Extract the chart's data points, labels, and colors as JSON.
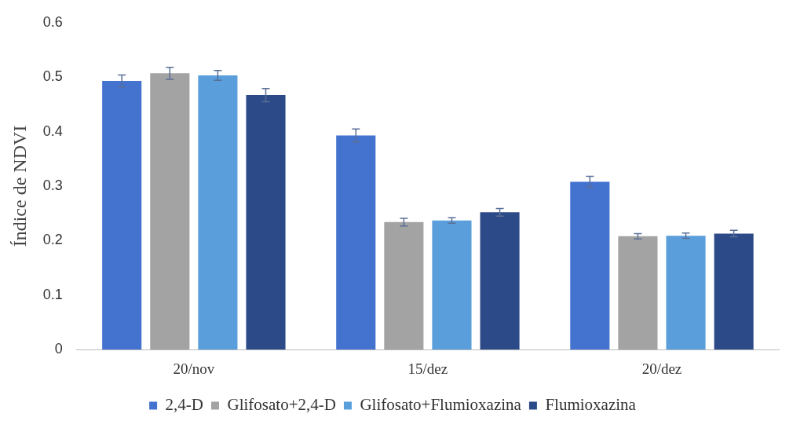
{
  "chart_data": {
    "type": "bar",
    "ylabel": "Índice de NDVI",
    "categories": [
      "20/nov",
      "15/dez",
      "20/dez"
    ],
    "series": [
      {
        "name": "2,4-D",
        "color": "#4372cf",
        "values": [
          0.493,
          0.393,
          0.308
        ],
        "errors": [
          0.011,
          0.012,
          0.01
        ]
      },
      {
        "name": "Glifosato+2,4-D",
        "color": "#a3a3a3",
        "values": [
          0.507,
          0.234,
          0.208
        ],
        "errors": [
          0.011,
          0.007,
          0.005
        ]
      },
      {
        "name": "Glifosato+Flumioxazina",
        "color": "#5a9edc",
        "values": [
          0.503,
          0.237,
          0.209
        ],
        "errors": [
          0.009,
          0.005,
          0.005
        ]
      },
      {
        "name": "Flumioxazina",
        "color": "#2c4a88",
        "values": [
          0.467,
          0.252,
          0.213
        ],
        "errors": [
          0.012,
          0.007,
          0.006
        ]
      }
    ],
    "ylim": [
      0,
      0.6
    ],
    "yticks": [
      0,
      0.1,
      0.2,
      0.3,
      0.4,
      0.5,
      0.6
    ],
    "grid": false,
    "legend": "bottom"
  }
}
